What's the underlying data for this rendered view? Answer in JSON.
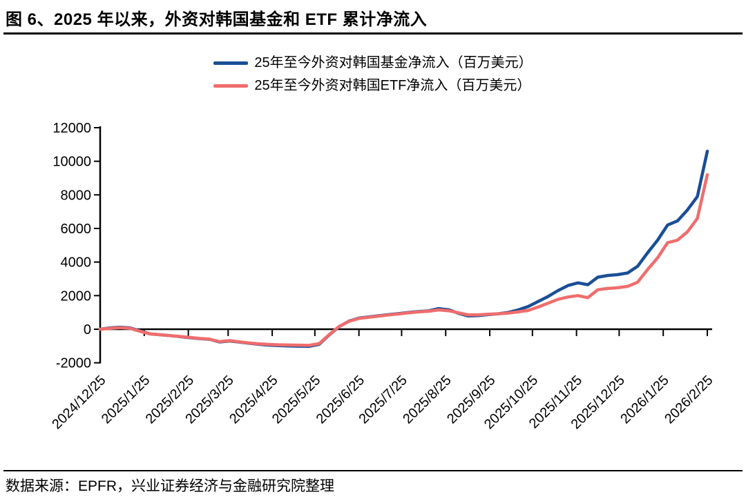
{
  "header": {
    "title": "图 6、2025 年以来，外资对韩国基金和 ETF 累计净流入"
  },
  "footer": {
    "source_text": "数据来源：EPFR，兴业证券经济与金融研究院整理"
  },
  "chart_data": {
    "type": "line",
    "title": "图 6、2025 年以来，外资对韩国基金和 ETF 累计净流入",
    "unit": "百万美元",
    "grid": false,
    "legend_position": "top-center",
    "ylim": [
      -2000,
      12000
    ],
    "y_ticks": [
      -2000,
      0,
      2000,
      4000,
      6000,
      8000,
      10000,
      12000
    ],
    "x_tick_labels": [
      "2024/12/25",
      "2025/1/25",
      "2025/2/25",
      "2025/3/25",
      "2025/4/25",
      "2025/5/25",
      "2025/6/25",
      "2025/7/25",
      "2025/8/25",
      "2025/9/25",
      "2025/10/25",
      "2025/11/25",
      "2025/12/25",
      "2026/1/25",
      "2026/2/25"
    ],
    "x": [
      "2024/12/25",
      "2025/1/1",
      "2025/1/8",
      "2025/1/15",
      "2025/1/22",
      "2025/1/29",
      "2025/2/5",
      "2025/2/12",
      "2025/2/19",
      "2025/2/26",
      "2025/3/5",
      "2025/3/12",
      "2025/3/19",
      "2025/3/26",
      "2025/4/2",
      "2025/4/9",
      "2025/4/16",
      "2025/4/23",
      "2025/4/30",
      "2025/5/7",
      "2025/5/14",
      "2025/5/21",
      "2025/5/28",
      "2025/6/4",
      "2025/6/11",
      "2025/6/18",
      "2025/6/25",
      "2025/7/2",
      "2025/7/9",
      "2025/7/16",
      "2025/7/23",
      "2025/7/30",
      "2025/8/6",
      "2025/8/13",
      "2025/8/20",
      "2025/8/27",
      "2025/9/3",
      "2025/9/10",
      "2025/9/17",
      "2025/9/24",
      "2025/10/1",
      "2025/10/8",
      "2025/10/15",
      "2025/10/22",
      "2025/10/29",
      "2025/11/5",
      "2025/11/12",
      "2025/11/19",
      "2025/11/26",
      "2025/12/3",
      "2025/12/10",
      "2025/12/17",
      "2025/12/24",
      "2025/12/31",
      "2026/1/7",
      "2026/1/14",
      "2026/1/21",
      "2026/1/28",
      "2026/2/4",
      "2026/2/11",
      "2026/2/18",
      "2026/2/25"
    ],
    "series": [
      {
        "name": "25年至今外资对韩国基金净流入（百万美元）",
        "color": "#1a4e96",
        "values": [
          0,
          80,
          120,
          80,
          -100,
          -280,
          -330,
          -380,
          -440,
          -500,
          -560,
          -600,
          -760,
          -700,
          -770,
          -840,
          -900,
          -950,
          -980,
          -1000,
          -1010,
          -1020,
          -900,
          -350,
          150,
          480,
          660,
          730,
          800,
          870,
          930,
          1000,
          1050,
          1090,
          1230,
          1160,
          950,
          790,
          810,
          870,
          920,
          1000,
          1150,
          1350,
          1650,
          1950,
          2300,
          2600,
          2760,
          2650,
          3100,
          3200,
          3250,
          3350,
          3750,
          4550,
          5300,
          6200,
          6450,
          7100,
          7900,
          10600
        ]
      },
      {
        "name": "25年至今外资对韩国ETF净流入（百万美元）",
        "color": "#ef6d6d",
        "values": [
          0,
          50,
          90,
          50,
          -120,
          -280,
          -330,
          -380,
          -430,
          -490,
          -550,
          -590,
          -740,
          -680,
          -750,
          -820,
          -870,
          -910,
          -930,
          -940,
          -950,
          -960,
          -860,
          -330,
          160,
          470,
          640,
          710,
          780,
          850,
          910,
          980,
          1030,
          1070,
          1150,
          1100,
          980,
          850,
          860,
          890,
          920,
          960,
          1030,
          1120,
          1320,
          1550,
          1780,
          1920,
          2000,
          1880,
          2350,
          2430,
          2470,
          2550,
          2800,
          3550,
          4250,
          5150,
          5300,
          5800,
          6600,
          9200
        ]
      }
    ]
  }
}
